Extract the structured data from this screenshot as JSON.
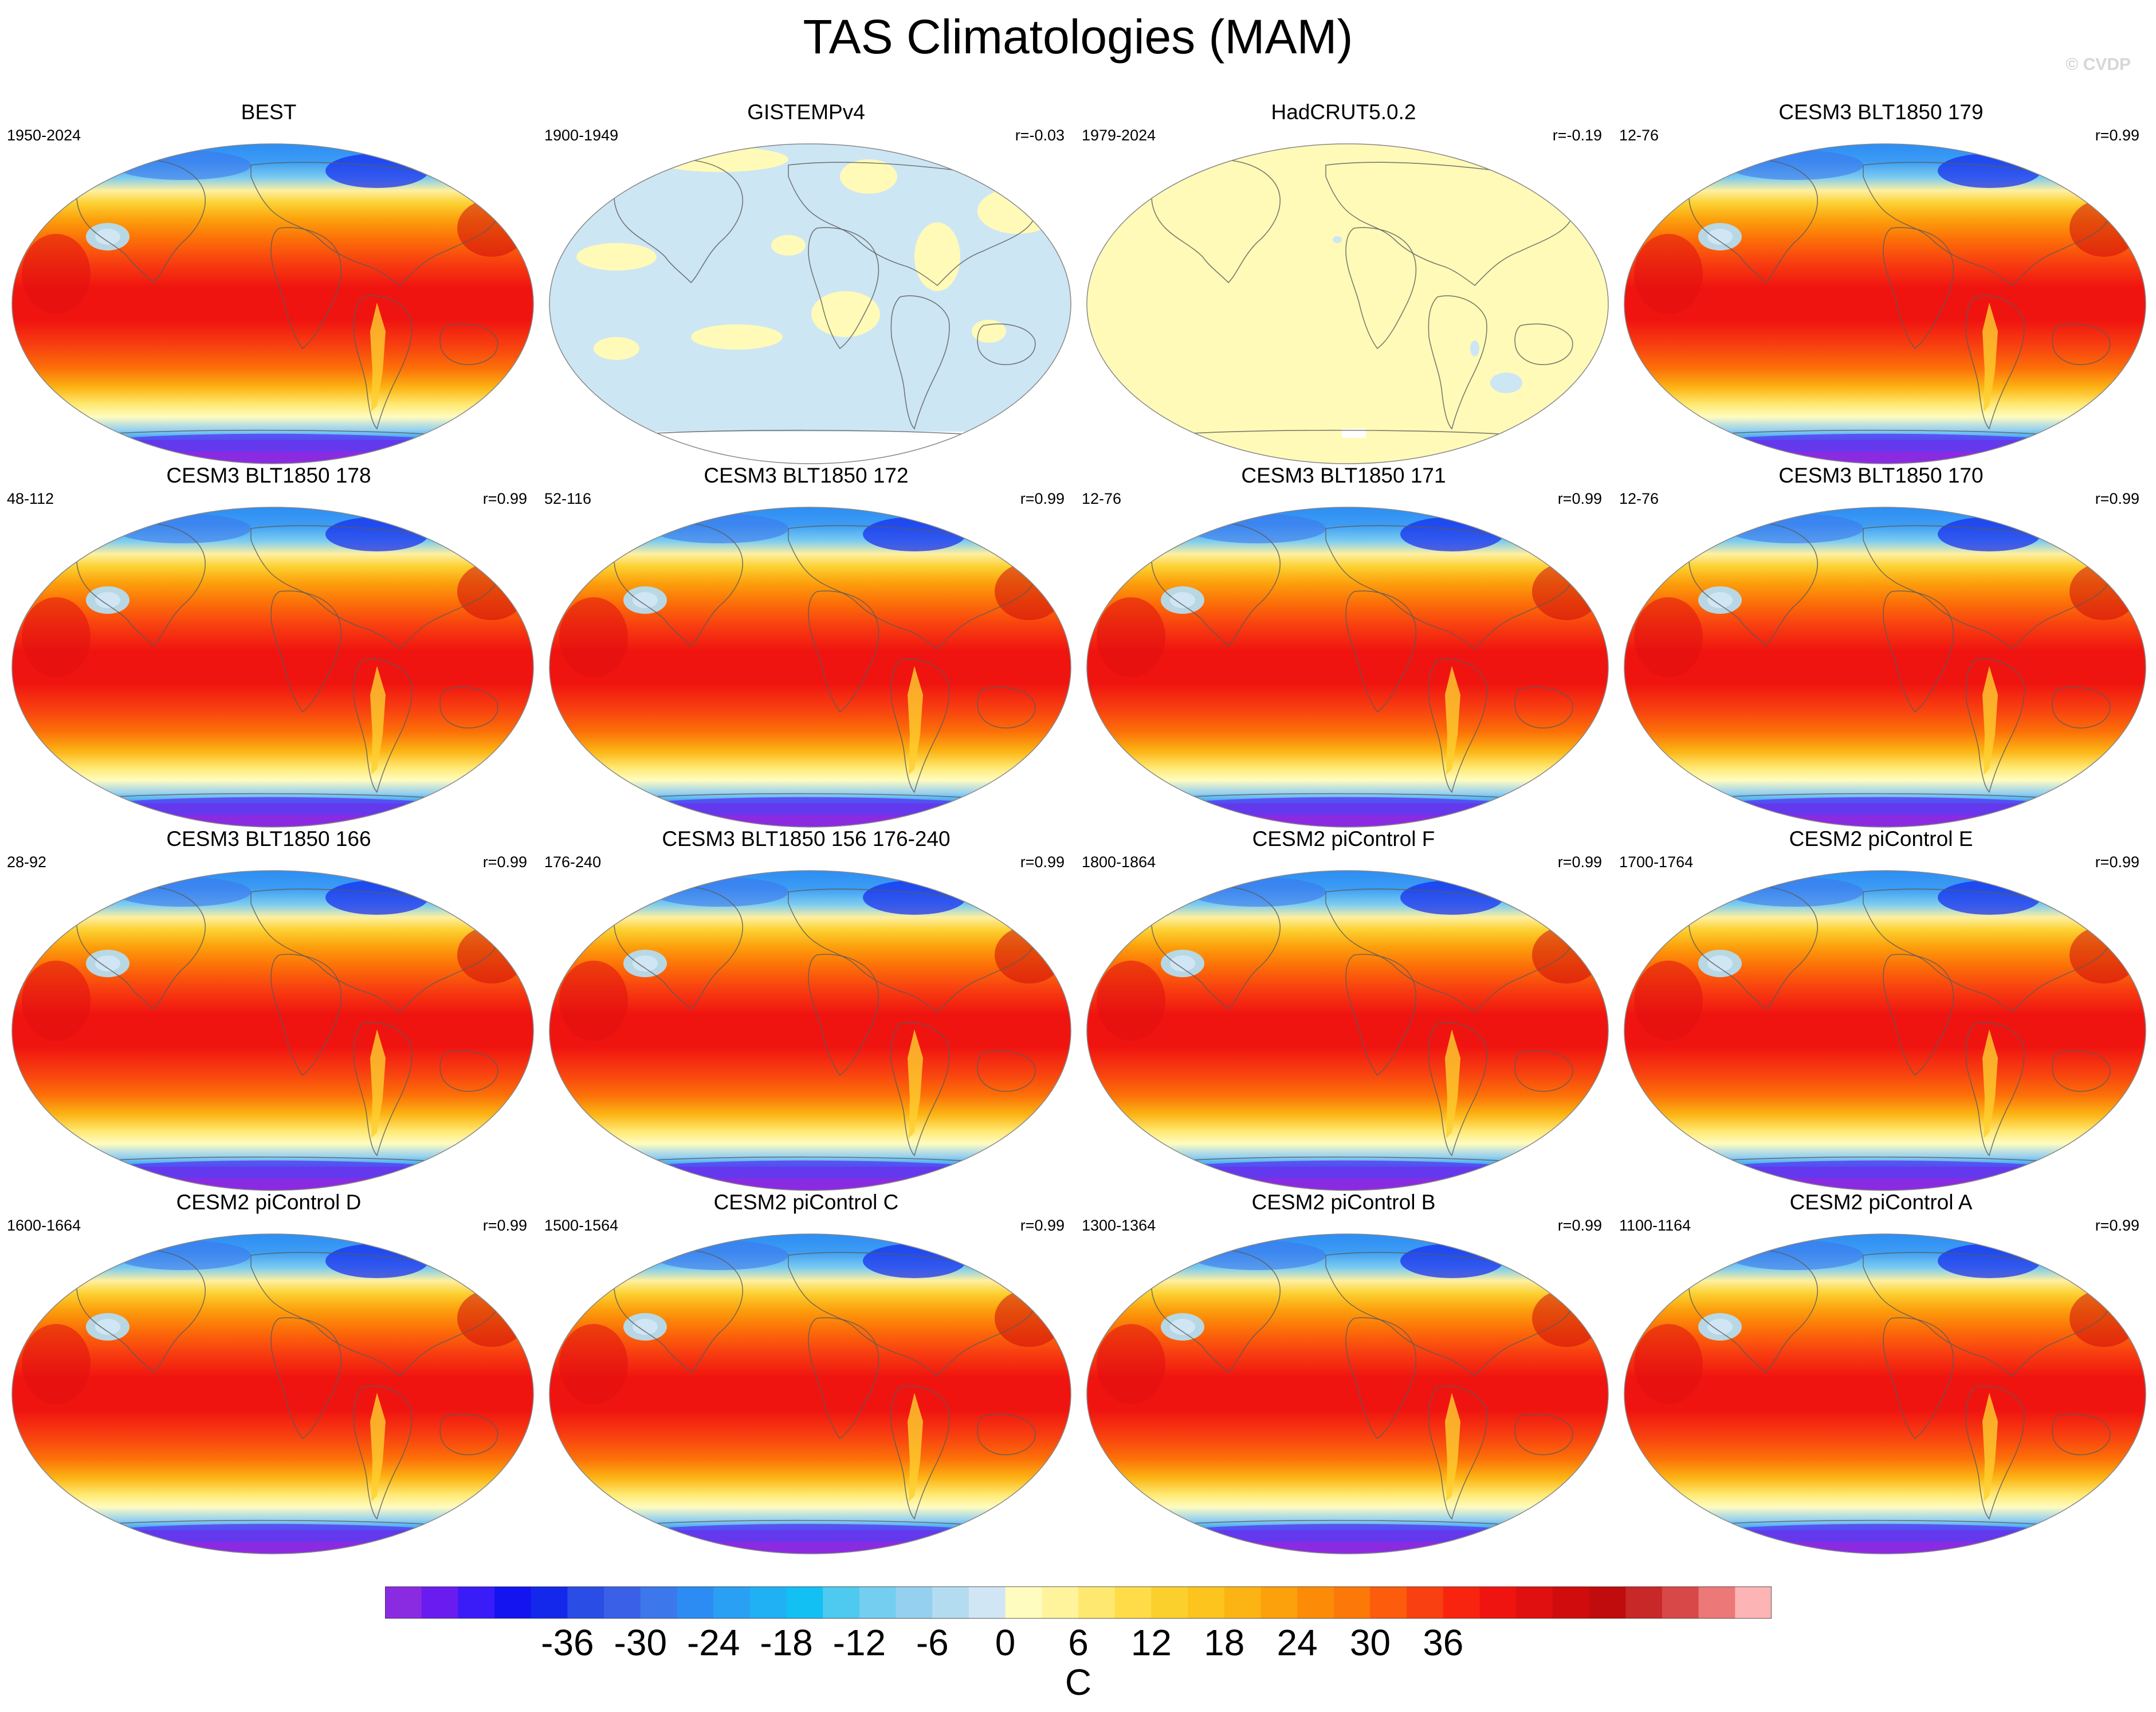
{
  "figure": {
    "title": "TAS Climatologies (MAM)",
    "credit": "© CVDP",
    "colorbar_unit": "C",
    "colorbar_labels": [
      "-36",
      "-30",
      "-24",
      "-18",
      "-12",
      "-6",
      "0",
      "6",
      "12",
      "18",
      "24",
      "30",
      "36"
    ],
    "colorbar_levels": [
      -36,
      -30,
      -24,
      -18,
      -12,
      -6,
      0,
      6,
      12,
      18,
      24,
      30,
      36
    ],
    "colorbar_colors": [
      "#8a2be2",
      "#6a1cf0",
      "#3a1cf8",
      "#1414f0",
      "#1428ec",
      "#2a4de6",
      "#3a60e8",
      "#3c78ec",
      "#2c8cf4",
      "#2aa0f4",
      "#20b0f4",
      "#12c0f4",
      "#4ecaf0",
      "#74cef0",
      "#96d0f0",
      "#b4dcf0",
      "#d0e6f4",
      "#fffcc0",
      "#fff49c",
      "#ffe870",
      "#ffdc48",
      "#fcd02c",
      "#fcc41c",
      "#fcb414",
      "#fca00c",
      "#fc8c08",
      "#fc7808",
      "#fc5c0c",
      "#f84010",
      "#f82410",
      "#f01410",
      "#e01010",
      "#d00c0c",
      "#c00c0c",
      "#c82828",
      "#d84848",
      "#ec7878",
      "#fcb4b4"
    ]
  },
  "panels": [
    {
      "title": "BEST",
      "left": "1950-2024",
      "right": "",
      "style": "model"
    },
    {
      "title": "GISTEMPv4",
      "left": "1900-1949",
      "right": "r=-0.03",
      "style": "gistemp"
    },
    {
      "title": "HadCRUT5.0.2",
      "left": "1979-2024",
      "right": "r=-0.19",
      "style": "hadcrut"
    },
    {
      "title": "CESM3 BLT1850 179",
      "left": "12-76",
      "right": "r=0.99",
      "style": "model"
    },
    {
      "title": "CESM3 BLT1850 178",
      "left": "48-112",
      "right": "r=0.99",
      "style": "model"
    },
    {
      "title": "CESM3 BLT1850 172",
      "left": "52-116",
      "right": "r=0.99",
      "style": "model"
    },
    {
      "title": "CESM3 BLT1850 171",
      "left": "12-76",
      "right": "r=0.99",
      "style": "model"
    },
    {
      "title": "CESM3 BLT1850 170",
      "left": "12-76",
      "right": "r=0.99",
      "style": "model"
    },
    {
      "title": "CESM3 BLT1850 166",
      "left": "28-92",
      "right": "r=0.99",
      "style": "model"
    },
    {
      "title": "CESM3 BLT1850 156 176-240",
      "left": "176-240",
      "right": "r=0.99",
      "style": "model"
    },
    {
      "title": "CESM2 piControl F",
      "left": "1800-1864",
      "right": "r=0.99",
      "style": "model"
    },
    {
      "title": "CESM2 piControl E",
      "left": "1700-1764",
      "right": "r=0.99",
      "style": "model"
    },
    {
      "title": "CESM2 piControl D",
      "left": "1600-1664",
      "right": "r=0.99",
      "style": "model"
    },
    {
      "title": "CESM2 piControl C",
      "left": "1500-1564",
      "right": "r=0.99",
      "style": "model"
    },
    {
      "title": "CESM2 piControl B",
      "left": "1300-1364",
      "right": "r=0.99",
      "style": "model"
    },
    {
      "title": "CESM2 piControl A",
      "left": "1100-1164",
      "right": "r=0.99",
      "style": "model"
    }
  ]
}
